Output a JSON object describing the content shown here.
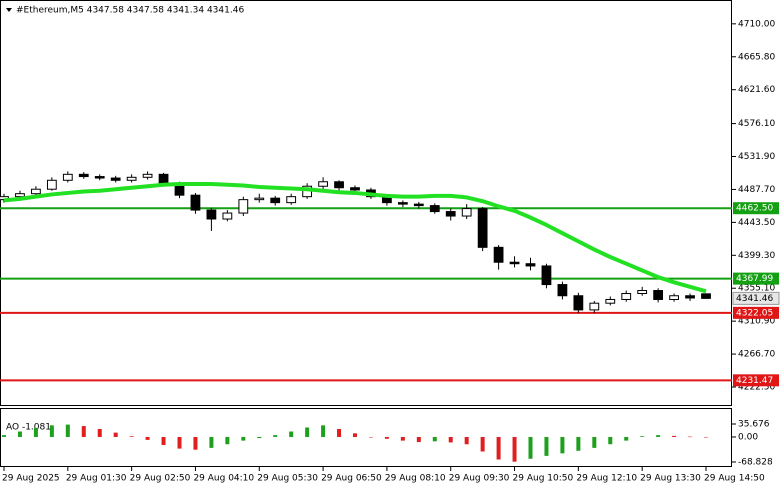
{
  "chart_data": [
    {
      "type": "candlestick",
      "title": "#Ethereum,M5  4347.58 4347.58 4341.34 4341.46",
      "categories": [
        "29 Aug 2025",
        null,
        null,
        null,
        "29 Aug 01:30",
        null,
        null,
        null,
        "29 Aug 02:50",
        null,
        null,
        null,
        "29 Aug 04:10",
        null,
        null,
        null,
        "29 Aug 05:30",
        null,
        null,
        null,
        "29 Aug 06:50",
        null,
        null,
        null,
        "29 Aug 08:10",
        null,
        null,
        null,
        "29 Aug 09:30",
        null,
        null,
        null,
        "29 Aug 10:50",
        null,
        null,
        null,
        "29 Aug 12:10",
        null,
        null,
        null,
        "29 Aug 13:30",
        null,
        null,
        null,
        "29 Aug 14:50"
      ],
      "open": [
        4474,
        4478,
        4482,
        4488,
        4500,
        4508,
        4505,
        4503,
        4500,
        4504,
        4508,
        4495,
        4480,
        4460,
        4448,
        4456,
        4474,
        4476,
        4470,
        4478,
        4492,
        4498,
        4490,
        4487,
        4478,
        4470,
        4468,
        4466,
        4458,
        4452,
        4462,
        4410,
        4390,
        4388,
        4385,
        4360,
        4345,
        4326,
        4335,
        4340,
        4348,
        4352,
        4340,
        4345,
        4347.58
      ],
      "high": [
        4482,
        4486,
        4492,
        4504,
        4512,
        4511,
        4508,
        4506,
        4508,
        4512,
        4510,
        4498,
        4483,
        4463,
        4460,
        4478,
        4482,
        4479,
        4482,
        4496,
        4504,
        4500,
        4493,
        4490,
        4480,
        4473,
        4471,
        4469,
        4462,
        4468,
        4464,
        4413,
        4398,
        4396,
        4388,
        4364,
        4349,
        4338,
        4344,
        4352,
        4357,
        4355,
        4348,
        4348,
        4347.58
      ],
      "low": [
        4470,
        4475,
        4479,
        4486,
        4497,
        4502,
        4500,
        4497,
        4497,
        4501,
        4492,
        4476,
        4455,
        4432,
        4445,
        4452,
        4470,
        4466,
        4467,
        4475,
        4488,
        4486,
        4483,
        4475,
        4466,
        4464,
        4462,
        4455,
        4446,
        4448,
        4405,
        4380,
        4383,
        4379,
        4355,
        4340,
        4322,
        4322,
        4332,
        4337,
        4345,
        4336,
        4337,
        4338,
        4341.34
      ],
      "close": [
        4478,
        4482,
        4488,
        4500,
        4508,
        4505,
        4503,
        4500,
        4504,
        4508,
        4495,
        4480,
        4460,
        4448,
        4456,
        4474,
        4476,
        4470,
        4478,
        4492,
        4498,
        4490,
        4487,
        4478,
        4470,
        4468,
        4466,
        4458,
        4452,
        4462,
        4410,
        4390,
        4388,
        4385,
        4360,
        4345,
        4326,
        4335,
        4340,
        4348,
        4352,
        4340,
        4345,
        4342,
        4341.46
      ],
      "up_color": "#ffffff",
      "down_color": "#000000",
      "moving_average": {
        "color": "#22e022",
        "values": [
          4473,
          4475,
          4478,
          4481,
          4483,
          4485,
          4486,
          4488,
          4490,
          4492,
          4494,
          4495,
          4495,
          4495,
          4494,
          4493,
          4491,
          4490,
          4489,
          4488,
          4486,
          4484,
          4483,
          4481,
          4479,
          4478,
          4478,
          4479,
          4479,
          4477,
          4472,
          4465,
          4459,
          4450,
          4440,
          4429,
          4418,
          4407,
          4397,
          4388,
          4379,
          4370,
          4363,
          4357,
          4351
        ]
      },
      "levels": [
        {
          "value": 4462.5,
          "label": "4462.50",
          "color": "#13a013"
        },
        {
          "value": 4367.99,
          "label": "4367.99",
          "color": "#13a013"
        },
        {
          "value": 4322.05,
          "label": "4322.05",
          "color": "#e01515"
        },
        {
          "value": 4231.47,
          "label": "4231.47",
          "color": "#e01515"
        }
      ],
      "price_label": {
        "value": 4341.46,
        "label": "4341.46"
      },
      "ylim": [
        4197,
        4742
      ],
      "yticks": [
        {
          "value": 4710,
          "label": "4710.00"
        },
        {
          "value": 4665.8,
          "label": "4665.80"
        },
        {
          "value": 4621.6,
          "label": "4621.60"
        },
        {
          "value": 4576.1,
          "label": "4576.10"
        },
        {
          "value": 4531.9,
          "label": "4531.90"
        },
        {
          "value": 4487.7,
          "label": "4487.70"
        },
        {
          "value": 4443.5,
          "label": "4443.50"
        },
        {
          "value": 4399.3,
          "label": "4399.30"
        },
        {
          "value": 4355.1,
          "label": "4355.10"
        },
        {
          "value": 4310.9,
          "label": "4310.90"
        },
        {
          "value": 4266.7,
          "label": "4266.70"
        },
        {
          "value": 4222.5,
          "label": "4222.50"
        }
      ]
    },
    {
      "type": "bar",
      "title": "AO -1.081",
      "values": [
        5,
        15,
        25,
        32,
        34,
        30,
        22,
        12,
        2,
        -8,
        -22,
        -32,
        -35,
        -30,
        -20,
        -10,
        -3,
        5,
        15,
        26,
        32,
        22,
        10,
        0,
        -5,
        -10,
        -14,
        -12,
        -15,
        -20,
        -40,
        -62,
        -68,
        -60,
        -52,
        -45,
        -38,
        -30,
        -20,
        -10,
        2,
        5,
        3,
        1,
        -1.081
      ],
      "up_color": "#1ea01e",
      "down_color": "#e02020",
      "ylim": [
        -68.828,
        35.676
      ],
      "yticks": [
        35.676,
        {
          "value": 0,
          "label": "0.00"
        },
        -68.828
      ]
    }
  ]
}
